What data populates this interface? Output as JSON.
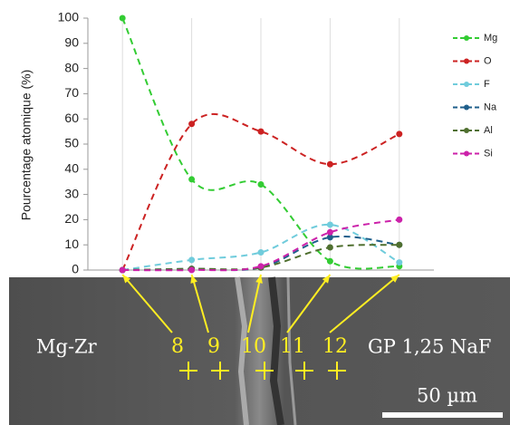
{
  "chart_data": {
    "type": "line",
    "y_label": "Pourcentage atomique (%)",
    "categories": [
      null,
      null,
      null,
      null,
      null
    ],
    "series": [
      {
        "name": "Mg",
        "color": "#33cc33",
        "values": [
          100,
          36,
          34,
          3.5,
          1.5
        ]
      },
      {
        "name": "O",
        "color": "#cc2222",
        "values": [
          0,
          58,
          55,
          42,
          54
        ]
      },
      {
        "name": "F",
        "color": "#70ccdc",
        "values": [
          0,
          4,
          7,
          18,
          3
        ]
      },
      {
        "name": "Na",
        "color": "#1f5f8b",
        "values": [
          0,
          0.5,
          1,
          13,
          10
        ]
      },
      {
        "name": "Al",
        "color": "#4f6f2f",
        "values": [
          0,
          0.5,
          1,
          9,
          10
        ]
      },
      {
        "name": "Si",
        "color": "#cc22aa",
        "values": [
          0,
          0,
          1.5,
          15,
          20
        ]
      }
    ],
    "ylim": [
      0,
      100
    ],
    "yticks": [
      0,
      10,
      20,
      30,
      40,
      50,
      60,
      70,
      80,
      90,
      100
    ],
    "grid": true,
    "legend": "right"
  },
  "image": {
    "point_labels": [
      "8",
      "9",
      "10",
      "11",
      "12"
    ],
    "left_label": "Mg-Zr",
    "right_label": "GP 1,25 NaF",
    "scale_label": "50 µm"
  }
}
